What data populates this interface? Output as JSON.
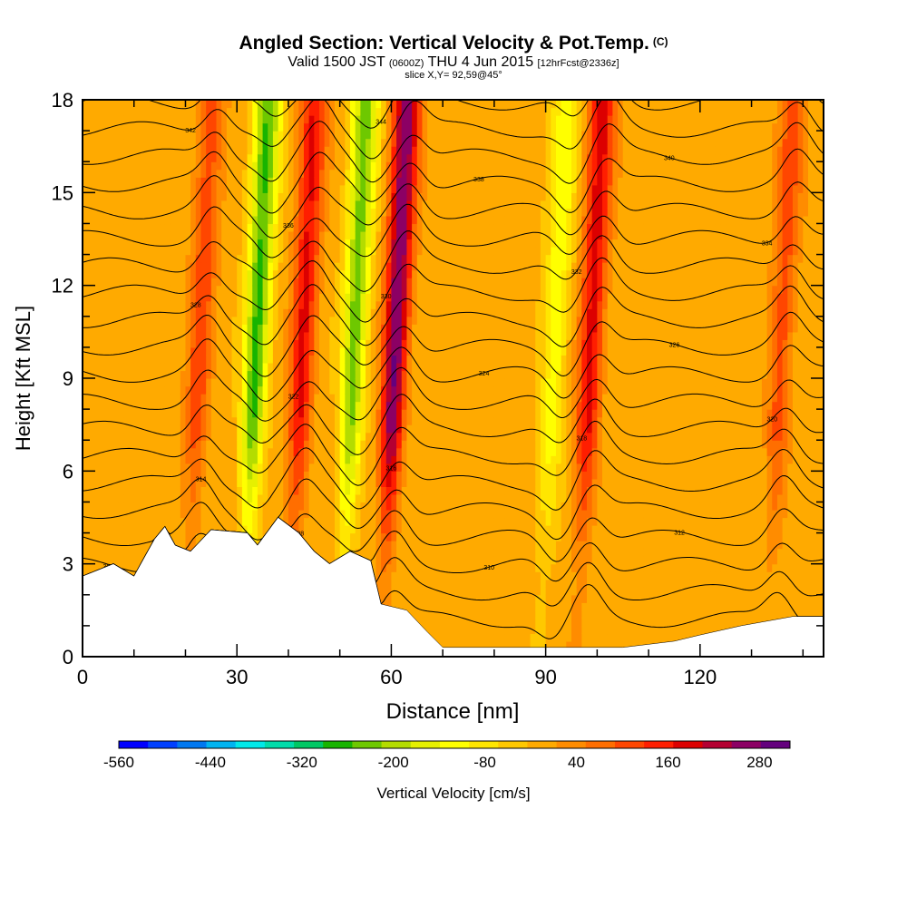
{
  "chart_data": {
    "type": "heatmap",
    "title": "Angled Section: Vertical Velocity & Pot.Temp.",
    "title_suffix": "(C)",
    "subtitle": {
      "valid": "Valid 1500 JST",
      "utc": "(0600Z)",
      "date": "THU 4 Jun 2015",
      "forecast": "[12hrFcst@2336z]"
    },
    "slice_label": "slice X,Y= 92,59@45°",
    "xlabel": "Distance [nm]",
    "ylabel": "Height [Kft MSL]",
    "xlim": [
      0,
      144
    ],
    "ylim": [
      0,
      18
    ],
    "x_ticks": [
      0,
      30,
      60,
      90,
      120
    ],
    "y_ticks": [
      0,
      3,
      6,
      9,
      12,
      15,
      18
    ],
    "colorbar": {
      "label": "Vertical Velocity [cm/s]",
      "min": -560,
      "max": 320,
      "step": 40,
      "tick_labels": [
        "-560",
        "-440",
        "-320",
        "-200",
        "-80",
        "40",
        "160",
        "280"
      ],
      "colors": [
        "#0000ff",
        "#0040ff",
        "#0078f0",
        "#00b4f0",
        "#00e8e8",
        "#00dcaa",
        "#00c864",
        "#18b400",
        "#6ec800",
        "#b4dc00",
        "#e6f000",
        "#ffff00",
        "#ffe600",
        "#ffc800",
        "#ffaa00",
        "#ff8c00",
        "#ff6e00",
        "#ff4600",
        "#ff1e00",
        "#dc0000",
        "#b40032",
        "#8c0064",
        "#64007d"
      ]
    },
    "updraft_columns": [
      {
        "x": 22,
        "value": 130
      },
      {
        "x": 42,
        "value": 190
      },
      {
        "x": 60,
        "value": 300
      },
      {
        "x": 98,
        "value": 200
      },
      {
        "x": 135,
        "value": 120
      }
    ],
    "downdraft_columns": [
      {
        "x": 33,
        "value": -260
      },
      {
        "x": 52,
        "value": -230
      },
      {
        "x": 91,
        "value": -120
      }
    ],
    "terrain": [
      [
        0,
        2.6
      ],
      [
        6,
        3.0
      ],
      [
        10,
        2.6
      ],
      [
        14,
        3.8
      ],
      [
        16,
        4.2
      ],
      [
        18,
        3.6
      ],
      [
        21,
        3.4
      ],
      [
        25,
        4.1
      ],
      [
        32,
        4.0
      ],
      [
        34,
        3.6
      ],
      [
        38,
        4.5
      ],
      [
        42,
        4.0
      ],
      [
        45,
        3.4
      ],
      [
        48,
        3.0
      ],
      [
        52,
        3.4
      ],
      [
        56,
        3.1
      ],
      [
        58,
        1.7
      ],
      [
        63,
        1.5
      ],
      [
        67,
        0.8
      ],
      [
        70,
        0.3
      ],
      [
        105,
        0.3
      ],
      [
        115,
        0.5
      ],
      [
        120,
        0.7
      ],
      [
        128,
        1.0
      ],
      [
        138,
        1.3
      ],
      [
        144,
        1.3
      ]
    ],
    "contour_labels": [
      "306",
      "308",
      "310",
      "312",
      "314",
      "316",
      "318",
      "320",
      "322",
      "324",
      "326",
      "328",
      "330",
      "332",
      "334",
      "336",
      "338",
      "340",
      "342",
      "344"
    ]
  }
}
